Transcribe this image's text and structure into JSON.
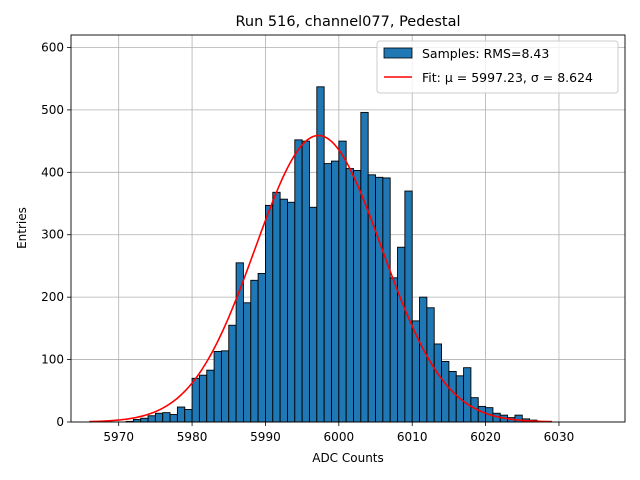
{
  "chart_data": {
    "type": "bar",
    "title": "Run 516, channel077, Pedestal",
    "xlabel": "ADC Counts",
    "ylabel": "Entries",
    "xlim": [
      5963.5,
      5039.0
    ],
    "ylim": [
      0,
      620
    ],
    "xticks": [
      5970,
      5980,
      5990,
      6000,
      6010,
      6020,
      6030
    ],
    "yticks": [
      0,
      100,
      200,
      300,
      400,
      500,
      600
    ],
    "grid": true,
    "legend_position": "top-right",
    "bin_width": 1,
    "bins_start": 5971,
    "values": [
      1,
      4,
      6,
      10,
      14,
      15,
      12,
      24,
      20,
      70,
      75,
      83,
      113,
      114,
      155,
      255,
      191,
      227,
      238,
      347,
      368,
      357,
      352,
      452,
      450,
      344,
      537,
      414,
      418,
      450,
      406,
      403,
      496,
      396,
      392,
      391,
      231,
      280,
      370,
      162,
      200,
      183,
      125,
      97,
      81,
      74,
      87,
      39,
      25,
      23,
      14,
      11,
      7,
      11,
      5,
      3,
      1,
      1
    ],
    "series": [
      {
        "name": "Samples: RMS=8.43",
        "kind": "histogram",
        "color": "#1f77b4",
        "edgecolor": "#000000"
      },
      {
        "name": "Fit: μ = 5997.23, σ = 8.624",
        "kind": "gaussian_fit",
        "color": "#ff0000",
        "mu": 5997.23,
        "sigma": 8.624,
        "amplitude": 459,
        "x_range": [
          5966,
          6029
        ]
      }
    ]
  }
}
